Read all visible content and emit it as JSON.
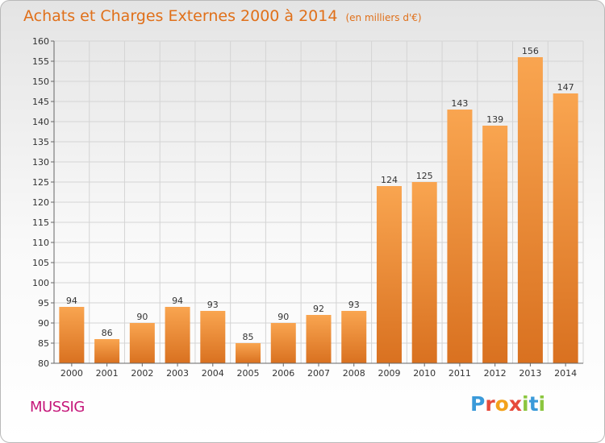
{
  "header": {
    "title": "Achats et Charges Externes 2000 à 2014",
    "unit": "(en milliers d'€)"
  },
  "footer": {
    "commune": "MUSSIG",
    "logo": [
      "P",
      "r",
      "o",
      "x",
      "i",
      "t",
      "i"
    ]
  },
  "colors": {
    "title": "#e0701a",
    "bar_top": "#f9a550",
    "bar_bottom": "#d97120",
    "commune": "#c5177a",
    "logo": [
      "#3a9ad9",
      "#e64a3b",
      "#f3a21b",
      "#e64a3b",
      "#8cc63f",
      "#3a9ad9",
      "#8cc63f"
    ]
  },
  "chart_data": {
    "type": "bar",
    "categories": [
      "2000",
      "2001",
      "2002",
      "2003",
      "2004",
      "2005",
      "2006",
      "2007",
      "2008",
      "2009",
      "2010",
      "2011",
      "2012",
      "2013",
      "2014"
    ],
    "values": [
      94,
      86,
      90,
      94,
      93,
      85,
      90,
      92,
      93,
      124,
      125,
      143,
      139,
      156,
      147
    ],
    "title": "Achats et Charges Externes 2000 à 2014",
    "ylim": [
      80,
      160
    ],
    "yticks": [
      80,
      85,
      90,
      95,
      100,
      105,
      110,
      115,
      120,
      125,
      130,
      135,
      140,
      145,
      150,
      155,
      160
    ],
    "grid": true,
    "data_labels": true
  }
}
